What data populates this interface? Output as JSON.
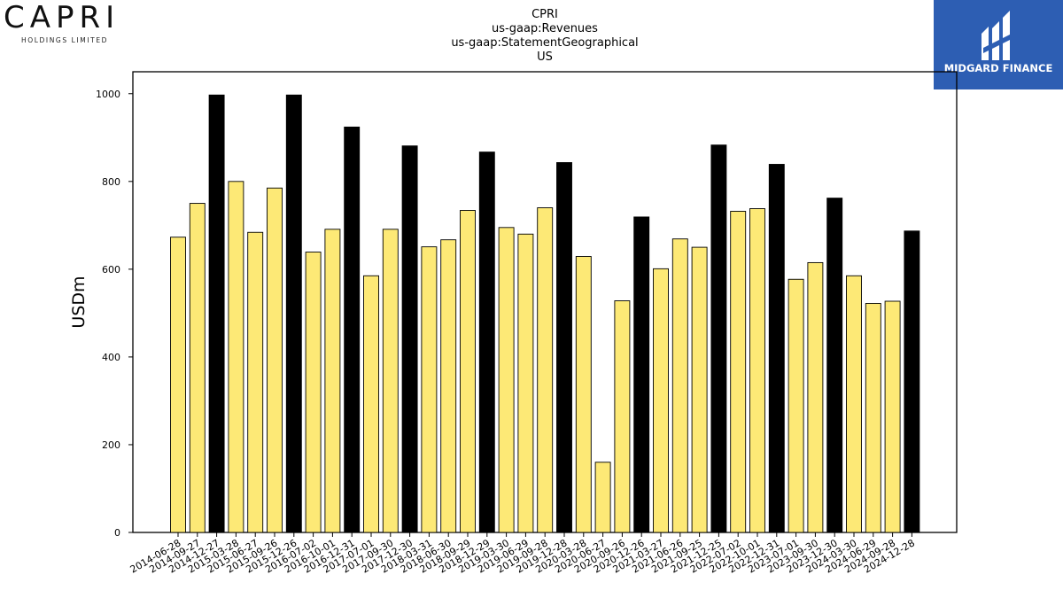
{
  "branding": {
    "left_logo_word": "CAPRI",
    "left_logo_sub": "HOLDINGS LIMITED",
    "right_logo_name": "MIDGARD FINANCE",
    "right_logo_color": "#2d5eb3"
  },
  "chart_data": {
    "type": "bar",
    "title_lines": [
      "CPRI",
      "us-gaap:Revenues",
      "us-gaap:StatementGeographical",
      "US"
    ],
    "xlabel": "",
    "ylabel": "USDm",
    "ylim": [
      0,
      1050
    ],
    "yticks": [
      0,
      200,
      400,
      600,
      800,
      1000
    ],
    "grid": false,
    "colors": {
      "quarter": "#fde976",
      "year_end": "#000000"
    },
    "categories": [
      "2014-06-28",
      "2014-09-27",
      "2014-12-27",
      "2015-03-28",
      "2015-06-27",
      "2015-09-26",
      "2015-12-26",
      "2016-07-02",
      "2016-10-01",
      "2016-12-31",
      "2017-07-01",
      "2017-09-30",
      "2017-12-30",
      "2018-03-31",
      "2018-06-30",
      "2018-09-29",
      "2018-12-29",
      "2019-03-30",
      "2019-06-29",
      "2019-09-28",
      "2019-12-28",
      "2020-03-28",
      "2020-06-27",
      "2020-09-26",
      "2020-12-26",
      "2021-03-27",
      "2021-06-26",
      "2021-09-25",
      "2021-12-25",
      "2022-07-02",
      "2022-10-01",
      "2022-12-31",
      "2023-07-01",
      "2023-09-30",
      "2023-12-30",
      "2024-03-30",
      "2024-06-29",
      "2024-09-28",
      "2024-12-28"
    ],
    "values": [
      673,
      750,
      997,
      800,
      684,
      785,
      997,
      639,
      691,
      924,
      585,
      691,
      881,
      651,
      667,
      734,
      867,
      695,
      680,
      740,
      843,
      629,
      160,
      528,
      719,
      601,
      669,
      650,
      883,
      732,
      738,
      839,
      577,
      615,
      762,
      585,
      522,
      527,
      687
    ],
    "highlight": [
      false,
      false,
      true,
      false,
      false,
      false,
      true,
      false,
      false,
      true,
      false,
      false,
      true,
      false,
      false,
      false,
      true,
      false,
      false,
      false,
      true,
      false,
      false,
      false,
      true,
      false,
      false,
      false,
      true,
      false,
      false,
      true,
      false,
      false,
      true,
      false,
      false,
      false,
      true
    ]
  }
}
